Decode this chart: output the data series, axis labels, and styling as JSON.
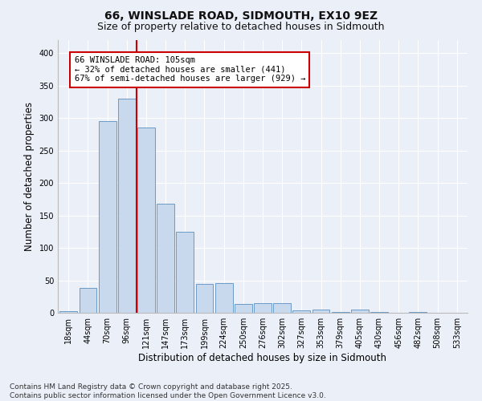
{
  "title": "66, WINSLADE ROAD, SIDMOUTH, EX10 9EZ",
  "subtitle": "Size of property relative to detached houses in Sidmouth",
  "xlabel": "Distribution of detached houses by size in Sidmouth",
  "ylabel": "Number of detached properties",
  "categories": [
    "18sqm",
    "44sqm",
    "70sqm",
    "96sqm",
    "121sqm",
    "147sqm",
    "173sqm",
    "199sqm",
    "224sqm",
    "250sqm",
    "276sqm",
    "302sqm",
    "327sqm",
    "353sqm",
    "379sqm",
    "405sqm",
    "430sqm",
    "456sqm",
    "482sqm",
    "508sqm",
    "533sqm"
  ],
  "values": [
    2,
    38,
    295,
    330,
    285,
    168,
    125,
    44,
    46,
    13,
    15,
    15,
    4,
    5,
    1,
    5,
    1,
    0,
    1,
    0,
    0
  ],
  "bar_color": "#c9d9ed",
  "bar_edge_color": "#5a8fc0",
  "vertical_line_x": 3.5,
  "vertical_line_color": "#cc0000",
  "annotation_text": "66 WINSLADE ROAD: 105sqm\n← 32% of detached houses are smaller (441)\n67% of semi-detached houses are larger (929) →",
  "annotation_box_color": "#ffffff",
  "annotation_box_edge_color": "#cc0000",
  "ylim": [
    0,
    420
  ],
  "yticks": [
    0,
    50,
    100,
    150,
    200,
    250,
    300,
    350,
    400
  ],
  "background_color": "#eaeff8",
  "grid_color": "#ffffff",
  "footer_text": "Contains HM Land Registry data © Crown copyright and database right 2025.\nContains public sector information licensed under the Open Government Licence v3.0.",
  "title_fontsize": 10,
  "subtitle_fontsize": 9,
  "axis_label_fontsize": 8.5,
  "tick_fontsize": 7,
  "annotation_fontsize": 7.5,
  "footer_fontsize": 6.5
}
